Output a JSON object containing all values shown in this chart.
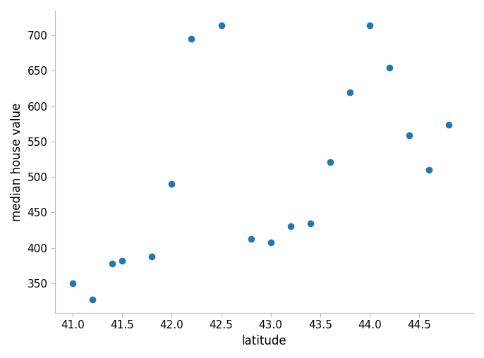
{
  "latitudes": [
    41.0,
    41.2,
    41.4,
    41.5,
    41.8,
    42.0,
    42.2,
    42.5,
    42.8,
    43.0,
    43.2,
    43.4,
    43.6,
    43.8,
    44.0,
    44.2,
    44.4,
    44.6,
    44.8
  ],
  "values": [
    350,
    327,
    378,
    382,
    388,
    490,
    695,
    714,
    413,
    408,
    430,
    434,
    521,
    620,
    714,
    654,
    559,
    510,
    574
  ],
  "dot_color": "#1f77b4",
  "dot_size": 35,
  "xlabel": "latitude",
  "ylabel": "median house value",
  "xlim": [
    40.82,
    45.05
  ],
  "ylim": [
    308,
    735
  ],
  "xticks": [
    41.0,
    41.5,
    42.0,
    42.5,
    43.0,
    43.5,
    44.0,
    44.5
  ],
  "yticks": [
    350,
    400,
    450,
    500,
    550,
    600,
    650,
    700
  ],
  "spine_color": "#bbbbbb",
  "tick_label_fontsize": 11,
  "axis_label_fontsize": 12,
  "figure_facecolor": "#ffffff"
}
